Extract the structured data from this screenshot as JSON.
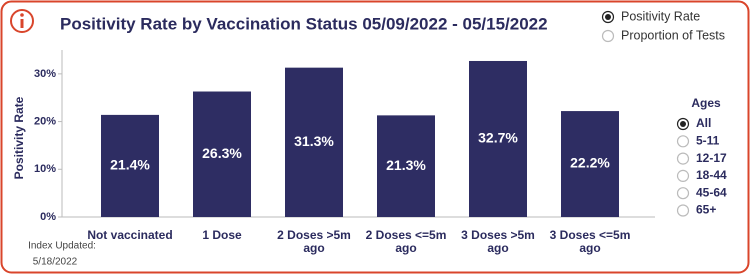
{
  "chart_data": {
    "type": "bar",
    "title": "Positivity Rate by Vaccination Status 05/09/2022 - 05/15/2022",
    "y_label": "Positivity Rate",
    "categories": [
      "Not vaccinated",
      "1 Dose",
      "2 Doses >5m ago",
      "2 Doses <=5m ago",
      "3 Doses >5m ago",
      "3 Doses <=5m ago"
    ],
    "values": [
      21.4,
      26.3,
      31.3,
      21.3,
      32.7,
      22.2
    ],
    "value_labels": [
      "21.4%",
      "26.3%",
      "31.3%",
      "21.3%",
      "32.7%",
      "22.2%"
    ],
    "color": "#2e2d63",
    "ylim": [
      0,
      35
    ],
    "yticks": [
      {
        "value": 0,
        "label": "0%"
      },
      {
        "value": 10,
        "label": "10%"
      },
      {
        "value": 20,
        "label": "20%"
      },
      {
        "value": 30,
        "label": "30%"
      }
    ],
    "grid": false
  },
  "controls": {
    "measure_options": [
      "Positivity Rate",
      "Proportion of Tests"
    ],
    "selected_measure": 0,
    "ages_title": "Ages",
    "age_options": [
      "All",
      "5-11",
      "12-17",
      "18-44",
      "45-64",
      "65+"
    ],
    "selected_age": 0
  },
  "footer": {
    "index_updated": "Index Updated:",
    "date": "5/18/2022"
  }
}
